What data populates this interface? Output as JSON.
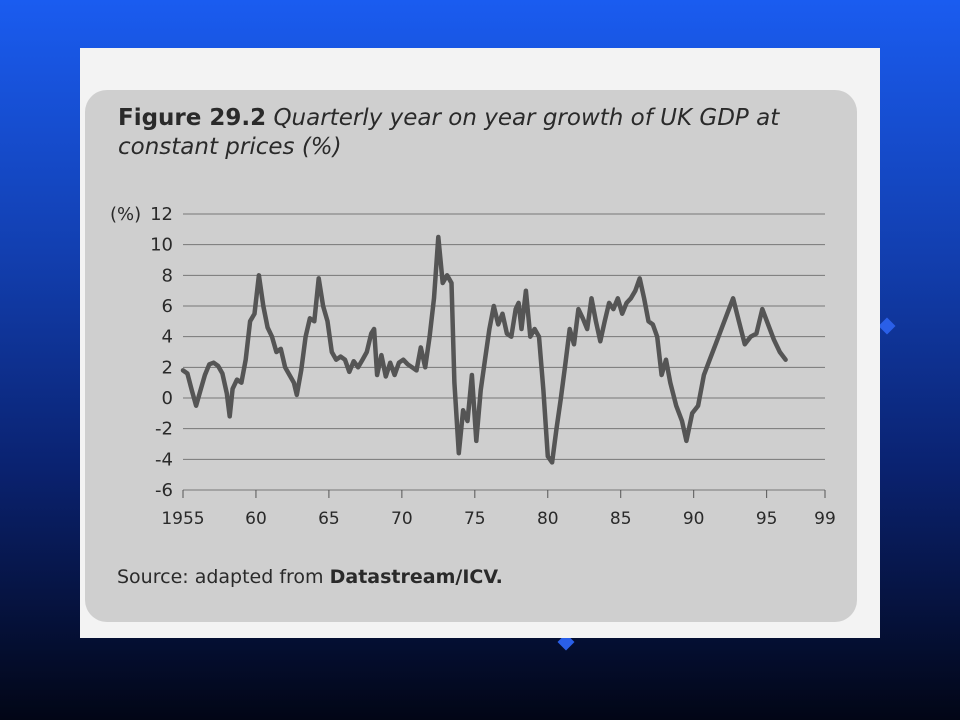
{
  "figure": {
    "label": "Figure 29.2",
    "title": "Quarterly year on year growth of UK GDP at constant prices (%)",
    "source_prefix": "Source: adapted from ",
    "source_name": "Datastream/ICV."
  },
  "colors": {
    "background_top": "#1a5cf0",
    "background_bottom": "#020616",
    "panel": "#cfcfcf",
    "line": "#555555"
  },
  "chart_data": {
    "type": "line",
    "title": "Figure 29.2 Quarterly year on year growth of UK GDP at constant prices (%)",
    "ylabel": "(%)",
    "xlabel": "",
    "ylim": [
      -6,
      12
    ],
    "xlim": [
      1955,
      1999
    ],
    "y_ticks": [
      12,
      10,
      8,
      6,
      4,
      2,
      0,
      -2,
      -4,
      -6
    ],
    "x_ticks": [
      {
        "value": 1955,
        "label": "1955"
      },
      {
        "value": 1960,
        "label": "60"
      },
      {
        "value": 1965,
        "label": "65"
      },
      {
        "value": 1970,
        "label": "70"
      },
      {
        "value": 1975,
        "label": "75"
      },
      {
        "value": 1980,
        "label": "80"
      },
      {
        "value": 1985,
        "label": "85"
      },
      {
        "value": 1990,
        "label": "90"
      },
      {
        "value": 1995,
        "label": "95"
      },
      {
        "value": 1999,
        "label": "99"
      }
    ],
    "grid": true,
    "series": [
      {
        "points": [
          [
            1955.0,
            1.8
          ],
          [
            1955.3,
            1.6
          ],
          [
            1955.6,
            0.5
          ],
          [
            1955.9,
            -0.5
          ],
          [
            1956.2,
            0.5
          ],
          [
            1956.5,
            1.5
          ],
          [
            1956.8,
            2.2
          ],
          [
            1957.1,
            2.3
          ],
          [
            1957.4,
            2.1
          ],
          [
            1957.7,
            1.6
          ],
          [
            1958.0,
            0.3
          ],
          [
            1958.2,
            -1.2
          ],
          [
            1958.4,
            0.6
          ],
          [
            1958.7,
            1.2
          ],
          [
            1959.0,
            1.0
          ],
          [
            1959.3,
            2.5
          ],
          [
            1959.6,
            5.0
          ],
          [
            1959.9,
            5.5
          ],
          [
            1960.2,
            8.0
          ],
          [
            1960.5,
            6.0
          ],
          [
            1960.8,
            4.6
          ],
          [
            1961.1,
            4.0
          ],
          [
            1961.4,
            3.0
          ],
          [
            1961.7,
            3.2
          ],
          [
            1962.0,
            2.0
          ],
          [
            1962.3,
            1.5
          ],
          [
            1962.6,
            1.0
          ],
          [
            1962.8,
            0.2
          ],
          [
            1963.1,
            1.8
          ],
          [
            1963.4,
            4.0
          ],
          [
            1963.7,
            5.2
          ],
          [
            1964.0,
            5.0
          ],
          [
            1964.3,
            7.8
          ],
          [
            1964.6,
            6.0
          ],
          [
            1964.9,
            5.0
          ],
          [
            1965.2,
            3.0
          ],
          [
            1965.5,
            2.5
          ],
          [
            1965.8,
            2.7
          ],
          [
            1966.1,
            2.5
          ],
          [
            1966.4,
            1.7
          ],
          [
            1966.7,
            2.4
          ],
          [
            1967.0,
            2.0
          ],
          [
            1967.3,
            2.5
          ],
          [
            1967.6,
            3.0
          ],
          [
            1967.9,
            4.2
          ],
          [
            1968.1,
            4.5
          ],
          [
            1968.3,
            1.5
          ],
          [
            1968.6,
            2.8
          ],
          [
            1968.9,
            1.4
          ],
          [
            1969.2,
            2.3
          ],
          [
            1969.5,
            1.5
          ],
          [
            1969.8,
            2.3
          ],
          [
            1970.1,
            2.5
          ],
          [
            1970.4,
            2.2
          ],
          [
            1970.7,
            2.0
          ],
          [
            1971.0,
            1.8
          ],
          [
            1971.3,
            3.3
          ],
          [
            1971.6,
            2.0
          ],
          [
            1971.9,
            4.0
          ],
          [
            1972.2,
            6.5
          ],
          [
            1972.5,
            10.5
          ],
          [
            1972.8,
            7.5
          ],
          [
            1973.1,
            8.0
          ],
          [
            1973.4,
            7.5
          ],
          [
            1973.6,
            1.0
          ],
          [
            1973.9,
            -3.6
          ],
          [
            1974.2,
            -0.8
          ],
          [
            1974.5,
            -1.5
          ],
          [
            1974.8,
            1.5
          ],
          [
            1975.1,
            -2.8
          ],
          [
            1975.4,
            0.5
          ],
          [
            1975.7,
            2.5
          ],
          [
            1976.0,
            4.5
          ],
          [
            1976.3,
            6.0
          ],
          [
            1976.6,
            4.8
          ],
          [
            1976.9,
            5.5
          ],
          [
            1977.2,
            4.2
          ],
          [
            1977.5,
            4.0
          ],
          [
            1977.8,
            5.8
          ],
          [
            1978.0,
            6.2
          ],
          [
            1978.2,
            4.5
          ],
          [
            1978.5,
            7.0
          ],
          [
            1978.8,
            4.0
          ],
          [
            1979.1,
            4.5
          ],
          [
            1979.4,
            4.0
          ],
          [
            1979.7,
            0.5
          ],
          [
            1980.0,
            -3.8
          ],
          [
            1980.3,
            -4.2
          ],
          [
            1980.6,
            -2.0
          ],
          [
            1980.9,
            0.0
          ],
          [
            1981.2,
            2.2
          ],
          [
            1981.5,
            4.5
          ],
          [
            1981.8,
            3.5
          ],
          [
            1982.1,
            5.8
          ],
          [
            1982.4,
            5.2
          ],
          [
            1982.7,
            4.5
          ],
          [
            1983.0,
            6.5
          ],
          [
            1983.3,
            5.0
          ],
          [
            1983.6,
            3.7
          ],
          [
            1983.9,
            5.0
          ],
          [
            1984.2,
            6.2
          ],
          [
            1984.5,
            5.8
          ],
          [
            1984.8,
            6.5
          ],
          [
            1985.1,
            5.5
          ],
          [
            1985.4,
            6.2
          ],
          [
            1985.7,
            6.5
          ],
          [
            1986.0,
            7.0
          ],
          [
            1986.3,
            7.8
          ],
          [
            1986.6,
            6.5
          ],
          [
            1986.9,
            5.0
          ],
          [
            1987.2,
            4.8
          ],
          [
            1987.5,
            4.0
          ],
          [
            1987.8,
            1.5
          ],
          [
            1988.1,
            2.5
          ],
          [
            1988.4,
            1.0
          ],
          [
            1988.8,
            -0.5
          ],
          [
            1989.2,
            -1.5
          ],
          [
            1989.5,
            -2.8
          ],
          [
            1989.9,
            -1.0
          ],
          [
            1990.3,
            -0.5
          ],
          [
            1990.7,
            1.5
          ],
          [
            1991.1,
            2.5
          ],
          [
            1991.5,
            3.5
          ],
          [
            1991.9,
            4.5
          ],
          [
            1992.3,
            5.5
          ],
          [
            1992.7,
            6.5
          ],
          [
            1993.1,
            5.0
          ],
          [
            1993.5,
            3.5
          ],
          [
            1993.9,
            4.0
          ],
          [
            1994.3,
            4.2
          ],
          [
            1994.7,
            5.8
          ],
          [
            1995.1,
            4.8
          ],
          [
            1995.5,
            3.8
          ],
          [
            1995.9,
            3.0
          ],
          [
            1996.3,
            2.5
          ]
        ]
      }
    ]
  }
}
